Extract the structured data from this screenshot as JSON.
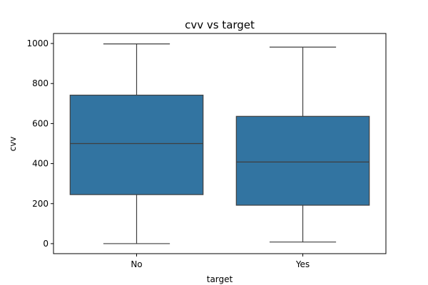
{
  "chart_data": {
    "type": "box",
    "title": "cvv vs target",
    "xlabel": "target",
    "ylabel": "cvv",
    "ylim": [
      -50,
      1050
    ],
    "yticks": [
      0,
      200,
      400,
      600,
      800,
      1000
    ],
    "ytick_labels": [
      "0",
      "200",
      "400",
      "600",
      "800",
      "1000"
    ],
    "grid": false,
    "box_color": "#3274a1",
    "edge_color": "#3f3f3f",
    "categories": [
      "No",
      "Yes"
    ],
    "boxes": [
      {
        "category": "No",
        "whisker_low": 0,
        "q1": 245,
        "median": 500,
        "q3": 742,
        "whisker_high": 998
      },
      {
        "category": "Yes",
        "whisker_low": 8,
        "q1": 192,
        "median": 408,
        "q3": 636,
        "whisker_high": 982
      }
    ]
  }
}
